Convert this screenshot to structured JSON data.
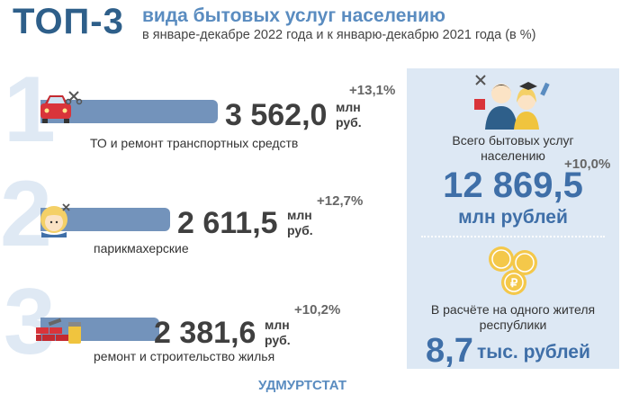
{
  "header": {
    "top3": "ТОП-3",
    "title": "вида бытовых услуг населению",
    "subtitle": "в январе-декабре 2022 года и к январю-декабрю 2021 года (в %)"
  },
  "chart_data": {
    "type": "bar",
    "categories": [
      "ТО и ремонт транспортных средств",
      "парикмахерские",
      "ремонт и строительство жилья"
    ],
    "series": [
      {
        "values": [
          3562.0,
          2611.5,
          2381.6
        ]
      }
    ],
    "growth": [
      "+13,1%",
      "+12,7%",
      "+10,2%"
    ],
    "value_labels": [
      "3 562,0",
      "2 611,5",
      "2 381,6"
    ],
    "unit_line1": "млн",
    "unit_line2": "руб.",
    "ranks": [
      "1",
      "2",
      "3"
    ]
  },
  "colors": {
    "bar": "#7393bb",
    "accent": "#5a8cc0",
    "dark_blue": "#2e5f8a",
    "panel": "#dde8f4"
  },
  "panel": {
    "total_label": "Всего бытовых услуг населению",
    "total_growth": "+10,0%",
    "total_value": "12 869,5",
    "total_unit": "млн рублей",
    "per_capita_label": "В расчёте на одного жителя республики",
    "per_capita_value": "8,7",
    "per_capita_unit": "тыс. рублей"
  },
  "icons": [
    "car-icon",
    "hairdresser-icon",
    "bricks-paint-icon",
    "people-icon",
    "coins-icon"
  ],
  "footer": "УДМУРТСТАТ"
}
